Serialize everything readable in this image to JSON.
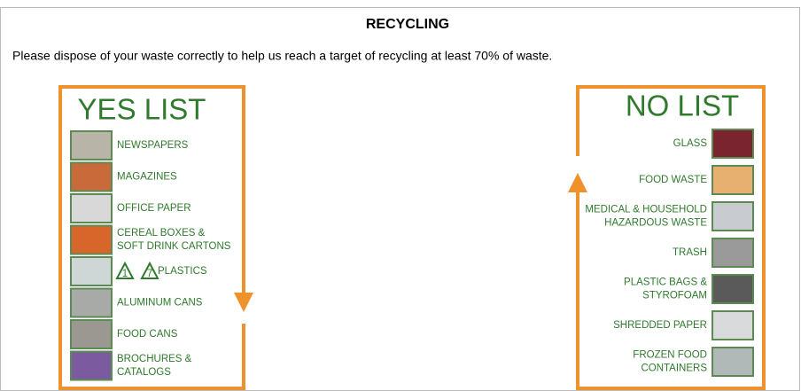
{
  "header": {
    "title": "RECYCLING",
    "instruction": "Please dispose of your waste correctly to help us reach a target of recycling at least 70% of waste."
  },
  "yes_list": {
    "title": "YES LIST",
    "items": [
      {
        "lines": [
          "NEWSPAPERS"
        ]
      },
      {
        "lines": [
          "MAGAZINES"
        ]
      },
      {
        "lines": [
          "OFFICE PAPER"
        ]
      },
      {
        "lines": [
          "CEREAL BOXES &",
          "SOFT DRINK CARTONS"
        ]
      },
      {
        "symbols": [
          "1",
          "7"
        ],
        "lines": [
          "PLASTICS"
        ]
      },
      {
        "lines": [
          "ALUMINUM CANS"
        ]
      },
      {
        "lines": [
          "FOOD CANS"
        ]
      },
      {
        "lines": [
          "BROCHURES &",
          "CATALOGS"
        ]
      }
    ]
  },
  "no_list": {
    "title": "NO LIST",
    "items": [
      {
        "lines": [
          "GLASS"
        ]
      },
      {
        "lines": [
          "FOOD WASTE"
        ]
      },
      {
        "lines": [
          "MEDICAL & HOUSEHOLD",
          "HAZARDOUS WASTE"
        ]
      },
      {
        "lines": [
          "TRASH"
        ]
      },
      {
        "lines": [
          "PLASTIC BAGS &",
          "STYROFOAM"
        ]
      },
      {
        "lines": [
          "SHREDDED PAPER"
        ]
      },
      {
        "lines": [
          "FROZEN FOOD",
          "CONTAINERS"
        ]
      }
    ]
  }
}
